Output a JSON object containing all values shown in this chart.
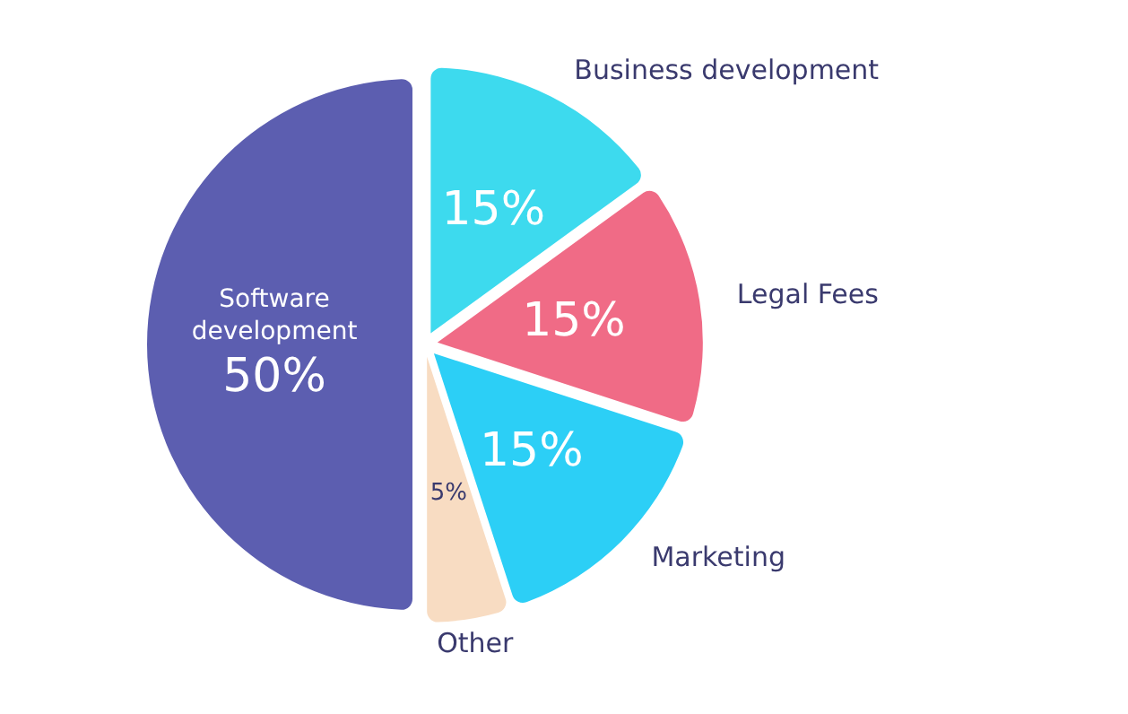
{
  "chart_data": {
    "type": "pie",
    "categories": [
      "Business development",
      "Legal Fees",
      "Marketing",
      "Other",
      "Software development"
    ],
    "values": [
      15,
      15,
      15,
      5,
      50
    ],
    "colors": [
      "#3ddaee",
      "#f06b86",
      "#2ccff6",
      "#f8dcc2",
      "#5c5eb0"
    ],
    "value_labels": [
      "15%",
      "15%",
      "15%",
      "5%",
      "50%"
    ],
    "legend": false
  }
}
